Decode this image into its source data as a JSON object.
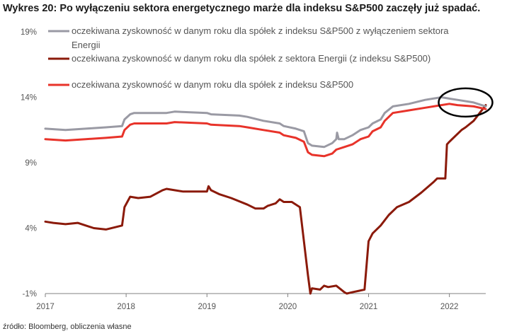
{
  "title": "Wykres 20: Po wyłączeniu sektora energetycznego marże dla indeksu S&P500 zaczęły już spadać.",
  "source": "źródło: Bloomberg, obliczenia własne",
  "chart_data": {
    "type": "line",
    "title": "Wykres 20: Po wyłączeniu sektora energetycznego marże dla indeksu S&P500 zaczęły już spadać.",
    "xlabel": "",
    "ylabel": "",
    "xlim": [
      2017.0,
      2022.45
    ],
    "ylim": [
      -1,
      19
    ],
    "x_ticks": [
      2017,
      2018,
      2019,
      2020,
      2021,
      2022
    ],
    "x_tick_labels": [
      "2017",
      "2018",
      "2019",
      "2020",
      "2021",
      "2022"
    ],
    "y_ticks": [
      -1,
      4,
      9,
      14,
      19
    ],
    "y_tick_labels": [
      "-1%",
      "4%",
      "9%",
      "14%",
      "19%"
    ],
    "grid": false,
    "legend_position": "top",
    "annotation": "black ellipse around the last months of the grey series",
    "series": [
      {
        "name": "oczekiwana zyskowność w danym roku dla spółek z indeksu S&P500 z wyłączeniem sektora Energii",
        "legend_lines": [
          "oczekiwana zyskowność w danym roku dla spółek z indeksu S&P500 z wyłączeniem sektora",
          "Energii"
        ],
        "color": "#9a9aa4",
        "x": [
          2017.0,
          2017.25,
          2017.5,
          2017.75,
          2017.95,
          2017.98,
          2018.05,
          2018.1,
          2018.5,
          2018.6,
          2019.0,
          2019.05,
          2019.4,
          2019.5,
          2019.7,
          2019.9,
          2019.95,
          2020.1,
          2020.2,
          2020.25,
          2020.3,
          2020.45,
          2020.55,
          2020.6,
          2020.61,
          2020.63,
          2020.7,
          2020.8,
          2020.9,
          2021.0,
          2021.05,
          2021.15,
          2021.2,
          2021.3,
          2021.5,
          2021.7,
          2021.9,
          2022.0,
          2022.1,
          2022.3,
          2022.45
        ],
        "values": [
          11.6,
          11.5,
          11.6,
          11.7,
          11.8,
          12.3,
          12.7,
          12.8,
          12.8,
          12.9,
          12.8,
          12.7,
          12.6,
          12.5,
          12.2,
          12.0,
          11.8,
          11.6,
          11.4,
          10.5,
          10.3,
          10.2,
          10.5,
          10.8,
          11.3,
          10.8,
          10.8,
          11.1,
          11.5,
          11.7,
          12.0,
          12.3,
          12.8,
          13.3,
          13.5,
          13.8,
          14.0,
          13.9,
          13.8,
          13.6,
          13.3
        ]
      },
      {
        "name": "oczekiwana zyskowność w danym roku dla spółek z sektora Energii (z indeksu S&P500)",
        "legend_lines": [
          "oczekiwana zyskowność w danym roku dla spółek z sektora Energii (z indeksu S&P500)"
        ],
        "color": "#8b1a0a",
        "x": [
          2017.0,
          2017.1,
          2017.25,
          2017.4,
          2017.5,
          2017.6,
          2017.75,
          2017.95,
          2017.98,
          2018.05,
          2018.15,
          2018.3,
          2018.45,
          2018.5,
          2018.6,
          2018.7,
          2018.85,
          2019.0,
          2019.02,
          2019.05,
          2019.15,
          2019.3,
          2019.5,
          2019.6,
          2019.7,
          2019.75,
          2019.85,
          2019.9,
          2019.95,
          2020.05,
          2020.15,
          2020.2,
          2020.25,
          2020.28,
          2020.3,
          2020.4,
          2020.45,
          2020.5,
          2020.6,
          2020.7,
          2020.73,
          2020.8,
          2020.95,
          2021.0,
          2021.05,
          2021.15,
          2021.25,
          2021.35,
          2021.5,
          2021.65,
          2021.8,
          2021.85,
          2021.95,
          2021.97,
          2022.0,
          2022.15,
          2022.2,
          2022.3,
          2022.45
        ],
        "values": [
          4.5,
          4.4,
          4.3,
          4.4,
          4.2,
          4.0,
          3.9,
          4.2,
          5.6,
          6.4,
          6.3,
          6.4,
          6.9,
          7.0,
          6.9,
          6.8,
          6.8,
          6.8,
          7.2,
          6.9,
          6.6,
          6.3,
          5.8,
          5.5,
          5.5,
          5.7,
          5.9,
          6.2,
          6.0,
          6.0,
          5.6,
          3.0,
          0.4,
          -1.0,
          -0.6,
          -0.7,
          -0.4,
          -0.5,
          -0.4,
          -0.9,
          -1.0,
          -0.9,
          -0.7,
          3.0,
          3.6,
          4.2,
          5.0,
          5.6,
          6.0,
          6.7,
          7.5,
          7.8,
          7.8,
          10.4,
          10.6,
          11.5,
          11.7,
          12.2,
          13.4
        ]
      },
      {
        "name": "oczekiwana zyskowność w danym roku dla spółek z indeksu S&P500",
        "legend_lines": [
          "oczekiwana zyskowność w danym roku dla spółek z indeksu S&P500"
        ],
        "color": "#e8332a",
        "x": [
          2017.0,
          2017.25,
          2017.5,
          2017.75,
          2017.95,
          2017.98,
          2018.05,
          2018.1,
          2018.5,
          2018.6,
          2019.0,
          2019.05,
          2019.4,
          2019.5,
          2019.7,
          2019.9,
          2019.95,
          2020.1,
          2020.2,
          2020.25,
          2020.3,
          2020.45,
          2020.55,
          2020.6,
          2020.7,
          2020.8,
          2020.9,
          2021.0,
          2021.05,
          2021.15,
          2021.2,
          2021.3,
          2021.5,
          2021.7,
          2021.9,
          2022.0,
          2022.1,
          2022.3,
          2022.45
        ],
        "values": [
          10.8,
          10.7,
          10.8,
          10.9,
          11.0,
          11.5,
          11.9,
          12.0,
          12.0,
          12.1,
          12.0,
          11.9,
          11.8,
          11.7,
          11.5,
          11.3,
          11.1,
          10.9,
          10.6,
          9.8,
          9.6,
          9.5,
          9.7,
          10.0,
          10.2,
          10.4,
          10.8,
          11.0,
          11.4,
          11.7,
          12.2,
          12.8,
          13.0,
          13.2,
          13.4,
          13.5,
          13.4,
          13.3,
          13.1
        ]
      }
    ]
  }
}
